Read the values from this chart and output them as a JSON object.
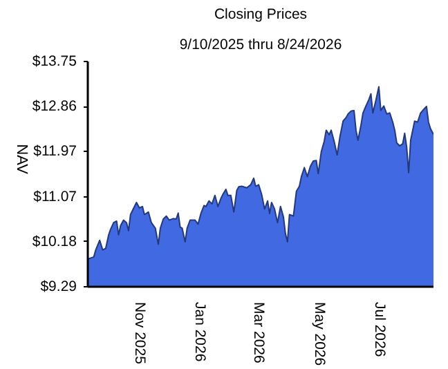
{
  "chart_data": {
    "type": "area",
    "title": "Closing Prices",
    "subtitle": "9/10/2025 thru 8/24/2026",
    "ylabel": "NAV",
    "x": [
      "2025-09-10",
      "2025-09-16",
      "2025-09-18",
      "2025-09-22",
      "2025-09-25",
      "2025-09-28",
      "2025-10-01",
      "2025-10-03",
      "2025-10-06",
      "2025-10-09",
      "2025-10-11",
      "2025-10-13",
      "2025-10-16",
      "2025-10-19",
      "2025-10-21",
      "2025-10-23",
      "2025-10-27",
      "2025-10-29",
      "2025-11-01",
      "2025-11-04",
      "2025-11-06",
      "2025-11-10",
      "2025-11-13",
      "2025-11-17",
      "2025-11-20",
      "2025-11-22",
      "2025-11-25",
      "2025-11-28",
      "2025-12-01",
      "2025-12-05",
      "2025-12-08",
      "2025-12-10",
      "2025-12-12",
      "2025-12-14",
      "2025-12-17",
      "2025-12-19",
      "2025-12-22",
      "2025-12-27",
      "2025-12-30",
      "2026-01-02",
      "2026-01-05",
      "2026-01-07",
      "2026-01-10",
      "2026-01-13",
      "2026-01-16",
      "2026-01-19",
      "2026-01-22",
      "2026-01-24",
      "2026-01-27",
      "2026-01-29",
      "2026-02-01",
      "2026-02-04",
      "2026-02-07",
      "2026-02-09",
      "2026-02-12",
      "2026-02-17",
      "2026-02-21",
      "2026-02-24",
      "2026-02-26",
      "2026-03-01",
      "2026-03-04",
      "2026-03-07",
      "2026-03-10",
      "2026-03-12",
      "2026-03-14",
      "2026-03-17",
      "2026-03-20",
      "2026-03-23",
      "2026-03-26",
      "2026-03-28",
      "2026-03-30",
      "2026-04-01",
      "2026-04-05",
      "2026-04-08",
      "2026-04-11",
      "2026-04-13",
      "2026-04-16",
      "2026-04-19",
      "2026-04-22",
      "2026-04-25",
      "2026-04-28",
      "2026-04-30",
      "2026-05-03",
      "2026-05-06",
      "2026-05-08",
      "2026-05-11",
      "2026-05-13",
      "2026-05-16",
      "2026-05-19",
      "2026-05-22",
      "2026-05-25",
      "2026-05-28",
      "2026-05-30",
      "2026-06-02",
      "2026-06-05",
      "2026-06-07",
      "2026-06-09",
      "2026-06-12",
      "2026-06-14",
      "2026-06-17",
      "2026-06-20",
      "2026-06-22",
      "2026-06-24",
      "2026-06-27",
      "2026-06-30",
      "2026-07-02",
      "2026-07-05",
      "2026-07-08",
      "2026-07-11",
      "2026-07-14",
      "2026-07-16",
      "2026-07-18",
      "2026-07-21",
      "2026-07-24",
      "2026-07-26",
      "2026-07-28",
      "2026-07-30",
      "2026-08-01",
      "2026-08-05",
      "2026-08-08",
      "2026-08-11",
      "2026-08-15",
      "2026-08-17",
      "2026-08-19",
      "2026-08-21",
      "2026-08-24"
    ],
    "series": [
      {
        "color": "#4169e1",
        "values": [
          9.84,
          9.88,
          10.02,
          10.21,
          10.02,
          10.05,
          10.32,
          10.43,
          10.56,
          10.59,
          10.32,
          10.5,
          10.61,
          10.56,
          10.4,
          10.72,
          10.88,
          10.96,
          10.85,
          10.88,
          10.72,
          10.77,
          10.56,
          10.45,
          10.13,
          10.45,
          10.63,
          10.69,
          10.61,
          10.64,
          10.63,
          10.75,
          10.47,
          10.45,
          10.18,
          10.45,
          10.61,
          10.61,
          10.53,
          10.75,
          10.9,
          10.88,
          10.99,
          10.93,
          11.1,
          10.88,
          11.04,
          11.12,
          11.22,
          11.1,
          11.1,
          10.77,
          11.2,
          11.27,
          11.28,
          11.25,
          11.31,
          11.44,
          11.28,
          11.31,
          11.12,
          10.83,
          10.99,
          10.74,
          10.96,
          10.83,
          10.56,
          10.88,
          10.67,
          10.34,
          10.18,
          10.72,
          10.69,
          11.18,
          11.28,
          11.47,
          11.65,
          11.47,
          11.67,
          11.78,
          11.79,
          11.53,
          11.96,
          12.17,
          12.39,
          12.3,
          12.39,
          12.17,
          11.9,
          12.28,
          12.57,
          12.64,
          12.71,
          12.77,
          12.78,
          12.39,
          12.19,
          12.49,
          12.73,
          12.87,
          13.0,
          13.11,
          12.73,
          12.98,
          13.25,
          12.78,
          12.87,
          12.71,
          12.73,
          12.55,
          12.39,
          12.14,
          12.08,
          12.12,
          12.33,
          12.06,
          11.55,
          12.19,
          12.57,
          12.55,
          12.73,
          12.82,
          12.86,
          12.55,
          12.42,
          12.31
        ]
      }
    ],
    "xlim": [
      "2025-09-10",
      "2026-08-24"
    ],
    "xticks": [
      {
        "value": "2025-11-01",
        "label": "Nov 2025"
      },
      {
        "value": "2026-01-01",
        "label": "Jan 2026"
      },
      {
        "value": "2026-03-01",
        "label": "Mar 2026"
      },
      {
        "value": "2026-05-01",
        "label": "May 2026"
      },
      {
        "value": "2026-07-01",
        "label": "Jul 2026"
      }
    ],
    "ylim": [
      9.29,
      13.75
    ],
    "yticks": [
      {
        "value": 9.29,
        "label": "$9.29"
      },
      {
        "value": 10.18,
        "label": "$10.18"
      },
      {
        "value": 11.07,
        "label": "$11.07"
      },
      {
        "value": 11.97,
        "label": "$11.97"
      },
      {
        "value": 12.86,
        "label": "$12.86"
      },
      {
        "value": 13.75,
        "label": "$13.75"
      }
    ],
    "grid": false
  }
}
